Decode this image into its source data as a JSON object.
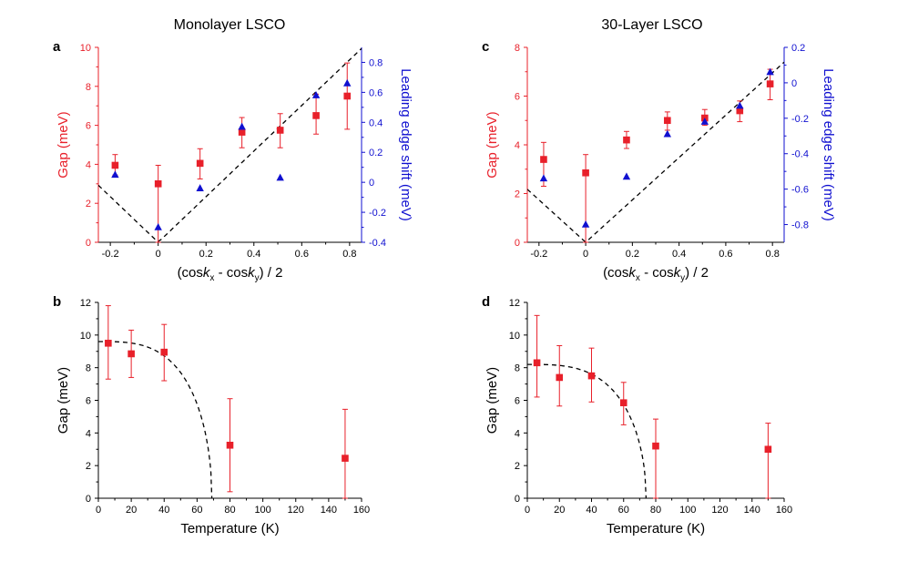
{
  "figure": {
    "col_titles": [
      "Monolayer LSCO",
      "30-Layer LSCO"
    ]
  },
  "colors": {
    "gap": "#e8202a",
    "shift": "#1010d0",
    "axis_default": "#000000",
    "fit": "#000000"
  },
  "chart_data": [
    {
      "id": "a",
      "panel_label": "a",
      "type": "scatter",
      "xlabel_parts": [
        "(cos",
        "k",
        "x",
        " - cos",
        "k",
        "y",
        ") / 2"
      ],
      "xlim": [
        -0.25,
        0.85
      ],
      "xticks": [
        -0.2,
        0,
        0.2,
        0.4,
        0.6,
        0.8
      ],
      "y_left": {
        "label": "Gap (meV)",
        "lim": [
          0,
          10
        ],
        "ticks": [
          0,
          2,
          4,
          6,
          8,
          10
        ]
      },
      "y_right": {
        "label": "Leading edge shift (meV)",
        "lim": [
          -0.4,
          0.9
        ],
        "ticks": [
          -0.4,
          -0.2,
          0,
          0.2,
          0.4,
          0.6,
          0.8
        ]
      },
      "series": [
        {
          "name": "Gap (meV)",
          "axis": "left",
          "marker": "square",
          "points": [
            {
              "x": -0.18,
              "y": 3.95,
              "lo": 3.45,
              "hi": 4.5
            },
            {
              "x": 0,
              "y": 3.0,
              "lo": 0,
              "hi": 3.95
            },
            {
              "x": 0.175,
              "y": 4.05,
              "lo": 3.25,
              "hi": 4.8
            },
            {
              "x": 0.35,
              "y": 5.65,
              "lo": 4.85,
              "hi": 6.4
            },
            {
              "x": 0.51,
              "y": 5.75,
              "lo": 4.85,
              "hi": 6.6
            },
            {
              "x": 0.66,
              "y": 6.5,
              "lo": 5.55,
              "hi": 7.6
            },
            {
              "x": 0.79,
              "y": 7.5,
              "lo": 5.8,
              "hi": 9.2
            }
          ]
        },
        {
          "name": "Leading edge shift (meV)",
          "axis": "right",
          "marker": "triangle",
          "points": [
            {
              "x": -0.18,
              "y": 0.05
            },
            {
              "x": 0,
              "y": -0.3
            },
            {
              "x": 0.175,
              "y": -0.04
            },
            {
              "x": 0.35,
              "y": 0.37
            },
            {
              "x": 0.51,
              "y": 0.03
            },
            {
              "x": 0.66,
              "y": 0.58
            },
            {
              "x": 0.79,
              "y": 0.66
            }
          ]
        }
      ],
      "fit": {
        "kind": "abs_linear",
        "axis": "left",
        "slope": 11.7
      }
    },
    {
      "id": "b",
      "panel_label": "b",
      "type": "scatter",
      "xlabel": "Temperature (K)",
      "xlim": [
        0,
        160
      ],
      "xticks": [
        0,
        20,
        40,
        60,
        80,
        100,
        120,
        140,
        160
      ],
      "y_left": {
        "label": "Gap (meV)",
        "lim": [
          0,
          12
        ],
        "ticks": [
          0,
          2,
          4,
          6,
          8,
          10,
          12
        ]
      },
      "series": [
        {
          "name": "Gap (meV)",
          "axis": "left",
          "marker": "square",
          "points": [
            {
              "x": 6,
              "y": 9.5,
              "lo": 7.3,
              "hi": 11.8
            },
            {
              "x": 20,
              "y": 8.85,
              "lo": 7.4,
              "hi": 10.3
            },
            {
              "x": 40,
              "y": 8.95,
              "lo": 7.2,
              "hi": 10.65
            },
            {
              "x": 80,
              "y": 3.25,
              "lo": 0.4,
              "hi": 6.1
            },
            {
              "x": 150,
              "y": 2.45,
              "lo": 0,
              "hi": 5.45
            }
          ]
        }
      ],
      "fit": {
        "kind": "bcs",
        "delta0": 9.6,
        "tc": 69
      }
    },
    {
      "id": "c",
      "panel_label": "c",
      "type": "scatter",
      "xlabel_parts": [
        "(cos",
        "k",
        "x",
        " - cos",
        "k",
        "y",
        ") / 2"
      ],
      "xlim": [
        -0.25,
        0.85
      ],
      "xticks": [
        -0.2,
        0,
        0.2,
        0.4,
        0.6,
        0.8
      ],
      "y_left": {
        "label": "Gap (meV)",
        "lim": [
          0,
          8
        ],
        "ticks": [
          0,
          2,
          4,
          6,
          8
        ]
      },
      "y_right": {
        "label": "Leading edge shift (meV)",
        "lim": [
          -0.9,
          0.2
        ],
        "ticks": [
          -0.8,
          -0.6,
          -0.4,
          -0.2,
          0,
          0.2
        ]
      },
      "series": [
        {
          "name": "Gap (meV)",
          "axis": "left",
          "marker": "square",
          "points": [
            {
              "x": -0.18,
              "y": 3.4,
              "lo": 2.3,
              "hi": 4.1
            },
            {
              "x": 0,
              "y": 2.85,
              "lo": 0,
              "hi": 3.6
            },
            {
              "x": 0.175,
              "y": 4.2,
              "lo": 3.85,
              "hi": 4.55
            },
            {
              "x": 0.35,
              "y": 5.0,
              "lo": 4.6,
              "hi": 5.35
            },
            {
              "x": 0.51,
              "y": 5.1,
              "lo": 4.8,
              "hi": 5.45
            },
            {
              "x": 0.66,
              "y": 5.4,
              "lo": 4.95,
              "hi": 5.8
            },
            {
              "x": 0.79,
              "y": 6.5,
              "lo": 5.85,
              "hi": 7.1
            }
          ]
        },
        {
          "name": "Leading edge shift (meV)",
          "axis": "right",
          "marker": "triangle",
          "points": [
            {
              "x": -0.18,
              "y": -0.54
            },
            {
              "x": 0,
              "y": -0.8
            },
            {
              "x": 0.175,
              "y": -0.53
            },
            {
              "x": 0.35,
              "y": -0.29
            },
            {
              "x": 0.51,
              "y": -0.22
            },
            {
              "x": 0.66,
              "y": -0.13
            },
            {
              "x": 0.79,
              "y": 0.06
            }
          ]
        }
      ],
      "fit": {
        "kind": "abs_linear",
        "axis": "left",
        "slope": 8.7
      }
    },
    {
      "id": "d",
      "panel_label": "d",
      "type": "scatter",
      "xlabel": "Temperature (K)",
      "xlim": [
        0,
        160
      ],
      "xticks": [
        0,
        20,
        40,
        60,
        80,
        100,
        120,
        140,
        160
      ],
      "y_left": {
        "label": "Gap (meV)",
        "lim": [
          0,
          12
        ],
        "ticks": [
          0,
          2,
          4,
          6,
          8,
          10,
          12
        ]
      },
      "series": [
        {
          "name": "Gap (meV)",
          "axis": "left",
          "marker": "square",
          "points": [
            {
              "x": 6,
              "y": 8.3,
              "lo": 6.2,
              "hi": 11.2
            },
            {
              "x": 20,
              "y": 7.4,
              "lo": 5.65,
              "hi": 9.35
            },
            {
              "x": 40,
              "y": 7.5,
              "lo": 5.9,
              "hi": 9.2
            },
            {
              "x": 60,
              "y": 5.85,
              "lo": 4.5,
              "hi": 7.1
            },
            {
              "x": 80,
              "y": 3.2,
              "lo": 0,
              "hi": 4.85
            },
            {
              "x": 150,
              "y": 3.0,
              "lo": 0,
              "hi": 4.6
            }
          ]
        }
      ],
      "fit": {
        "kind": "bcs",
        "delta0": 8.2,
        "tc": 74
      }
    }
  ]
}
